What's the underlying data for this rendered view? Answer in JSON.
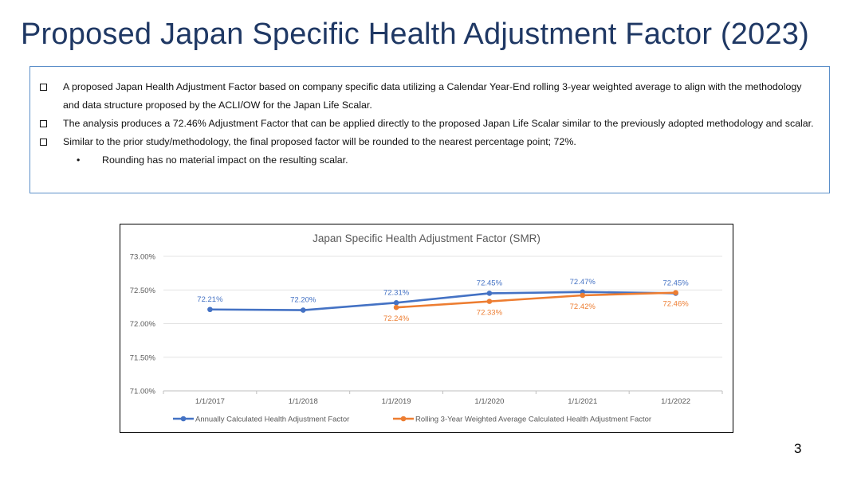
{
  "slide": {
    "title": "Proposed Japan Specific Health Adjustment Factor (2023)",
    "page_number": "3"
  },
  "bullets": [
    {
      "text": "A proposed Japan Health Adjustment Factor based on company specific data utilizing a Calendar Year-End rolling 3-year weighted average to align with the methodology and data structure proposed by the ACLI/OW for the Japan Life Scalar."
    },
    {
      "text": "The analysis produces a 72.46% Adjustment Factor that can be applied directly to the proposed Japan Life Scalar similar to the previously adopted methodology and scalar."
    },
    {
      "text": "Similar to the prior study/methodology, the final proposed factor will be rounded to the nearest percentage point; 72%."
    }
  ],
  "sub_bullets": [
    {
      "marker": "•",
      "text": "Rounding has no material impact on the resulting scalar."
    }
  ],
  "chart_data": {
    "type": "line",
    "title": "Japan Specific Health Adjustment Factor (SMR)",
    "x": [
      "1/1/2017",
      "1/1/2018",
      "1/1/2019",
      "1/1/2020",
      "1/1/2021",
      "1/1/2022"
    ],
    "ylim": [
      71.0,
      73.0
    ],
    "yticks": [
      "71.00%",
      "71.50%",
      "72.00%",
      "72.50%",
      "73.00%"
    ],
    "ytick_values": [
      71.0,
      71.5,
      72.0,
      72.5,
      73.0
    ],
    "grid": true,
    "legend_position": "bottom",
    "series": [
      {
        "name": "Annually Calculated Health Adjustment Factor",
        "color": "#4472c4",
        "values": [
          72.21,
          72.2,
          72.31,
          72.45,
          72.47,
          72.45
        ],
        "labels": [
          "72.21%",
          "72.20%",
          "72.31%",
          "72.45%",
          "72.47%",
          "72.45%"
        ],
        "label_position": "above"
      },
      {
        "name": "Rolling 3-Year Weighted Average Calculated Health Adjustment Factor",
        "color": "#ed7d31",
        "values": [
          null,
          null,
          72.24,
          72.33,
          72.42,
          72.46
        ],
        "labels": [
          null,
          null,
          "72.24%",
          "72.33%",
          "72.42%",
          "72.46%"
        ],
        "label_position": "below"
      }
    ]
  }
}
